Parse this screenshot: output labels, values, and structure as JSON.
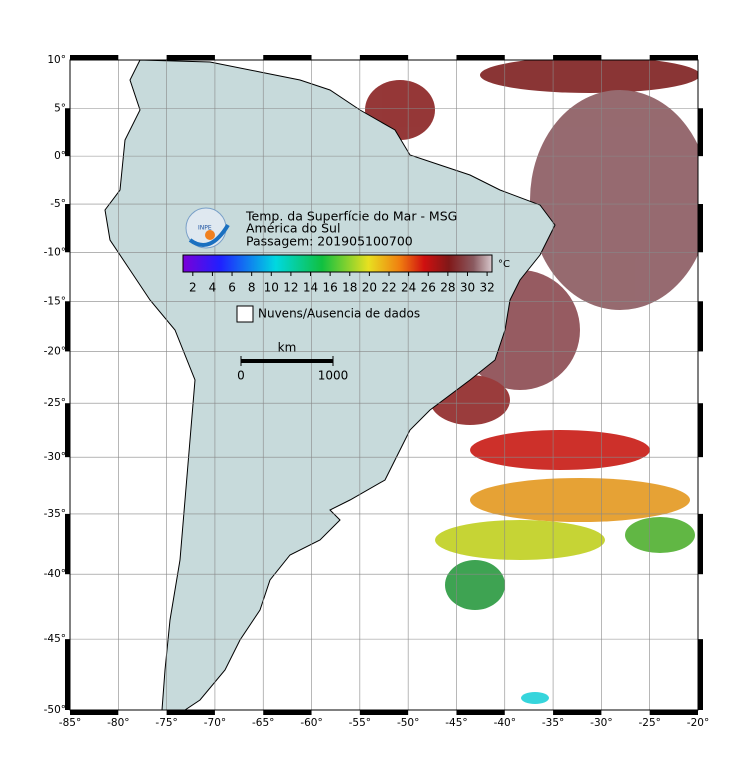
{
  "header": {
    "title": "Temp. da Superfície do Mar - MSG",
    "region": "América do Sul",
    "pass": "Passagem: 201905100700",
    "logo": "INPE"
  },
  "colorbar": {
    "unit": "°C",
    "lim": [
      1,
      32.5
    ],
    "ticks": [
      2,
      4,
      6,
      8,
      10,
      12,
      14,
      16,
      18,
      20,
      22,
      24,
      26,
      28,
      30,
      32
    ]
  },
  "legend": {
    "clouds": "Nuvens/Ausencia de dados"
  },
  "scale_bar": {
    "unit": "km",
    "ticks": [
      0,
      1000
    ]
  },
  "map": {
    "projection": "mercator",
    "grid": true,
    "lonlim": [
      -85,
      -20
    ],
    "latlim": [
      -50,
      10
    ],
    "lonticks": [
      {
        "value": -85,
        "label": "-85°"
      },
      {
        "value": -80,
        "label": "-80°"
      },
      {
        "value": -75,
        "label": "-75°"
      },
      {
        "value": -70,
        "label": "-70°"
      },
      {
        "value": -65,
        "label": "-65°"
      },
      {
        "value": -60,
        "label": "-60°"
      },
      {
        "value": -55,
        "label": "-55°"
      },
      {
        "value": -50,
        "label": "-50°"
      },
      {
        "value": -45,
        "label": "-45°"
      },
      {
        "value": -40,
        "label": "-40°"
      },
      {
        "value": -35,
        "label": "-35°"
      },
      {
        "value": -30,
        "label": "-30°"
      },
      {
        "value": -25,
        "label": "-25°"
      },
      {
        "value": -20,
        "label": "-20°"
      }
    ],
    "latticks": [
      {
        "value": 10,
        "label": "10°"
      },
      {
        "value": 5,
        "label": "5°"
      },
      {
        "value": 0,
        "label": "0°"
      },
      {
        "value": -5,
        "label": "-5°"
      },
      {
        "value": -10,
        "label": "-10°"
      },
      {
        "value": -15,
        "label": "-15°"
      },
      {
        "value": -20,
        "label": "-20°"
      },
      {
        "value": -25,
        "label": "-25°"
      },
      {
        "value": -30,
        "label": "-30°"
      },
      {
        "value": -35,
        "label": "-35°"
      },
      {
        "value": -40,
        "label": "-40°"
      },
      {
        "value": -45,
        "label": "-45°"
      },
      {
        "value": -50,
        "label": "-50°"
      }
    ]
  }
}
